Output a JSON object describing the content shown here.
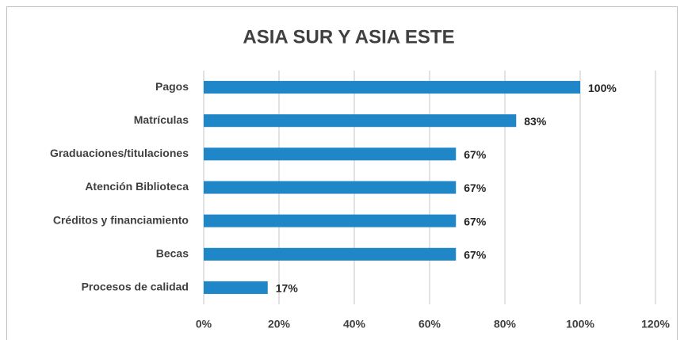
{
  "chart_data": {
    "type": "bar",
    "orientation": "horizontal",
    "title": "ASIA SUR Y ASIA ESTE",
    "categories": [
      "Pagos",
      "Matrículas",
      "Graduaciones/titulaciones",
      "Atención Biblioteca",
      "Créditos y financiamiento",
      "Becas",
      "Procesos de calidad"
    ],
    "values": [
      100,
      83,
      67,
      67,
      67,
      67,
      17
    ],
    "value_labels": [
      "100%",
      "83%",
      "67%",
      "67%",
      "67%",
      "67%",
      "17%"
    ],
    "color": "#1f86c8",
    "xlim": [
      0,
      120
    ],
    "xticks": [
      {
        "value": 0,
        "label": "0%"
      },
      {
        "value": 20,
        "label": "20%"
      },
      {
        "value": 40,
        "label": "40%"
      },
      {
        "value": 60,
        "label": "60%"
      },
      {
        "value": 80,
        "label": "80%"
      },
      {
        "value": 100,
        "label": "100%"
      },
      {
        "value": 120,
        "label": "120%"
      }
    ],
    "grid": true
  }
}
